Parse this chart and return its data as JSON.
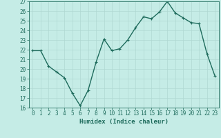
{
  "x": [
    0,
    1,
    2,
    3,
    4,
    5,
    6,
    7,
    8,
    9,
    10,
    11,
    12,
    13,
    14,
    15,
    16,
    17,
    18,
    19,
    20,
    21,
    22,
    23
  ],
  "y": [
    21.9,
    21.9,
    20.3,
    19.7,
    19.1,
    17.5,
    16.2,
    17.8,
    20.7,
    23.1,
    21.9,
    22.1,
    23.0,
    24.3,
    25.4,
    25.2,
    25.9,
    27.0,
    25.8,
    25.3,
    24.8,
    24.7,
    21.6,
    19.3
  ],
  "xlabel": "Humidex (Indice chaleur)",
  "ylim": [
    16,
    27
  ],
  "xlim": [
    -0.5,
    23.5
  ],
  "yticks": [
    16,
    17,
    18,
    19,
    20,
    21,
    22,
    23,
    24,
    25,
    26,
    27
  ],
  "xticks": [
    0,
    1,
    2,
    3,
    4,
    5,
    6,
    7,
    8,
    9,
    10,
    11,
    12,
    13,
    14,
    15,
    16,
    17,
    18,
    19,
    20,
    21,
    22,
    23
  ],
  "line_color": "#1e6b5c",
  "marker_color": "#1e6b5c",
  "bg_color": "#c5ece6",
  "grid_color": "#b0d8d2",
  "tick_color": "#1e6b5c",
  "label_color": "#1e6b5c",
  "xlabel_fontsize": 6.5,
  "tick_fontsize": 5.5,
  "line_width": 1.0,
  "marker_size": 2.5
}
